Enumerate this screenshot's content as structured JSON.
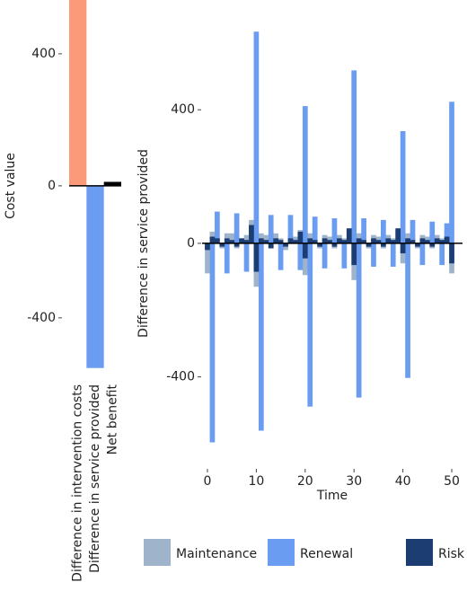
{
  "chart_data": [
    {
      "type": "bar",
      "y_label": "Cost value",
      "categories": [
        "Difference in intervention costs",
        "Difference in service provided",
        "Net benefit"
      ],
      "values": [
        563,
        -552,
        12
      ],
      "colors": [
        "#fb9a78",
        "#6a9cf2",
        "#000000"
      ],
      "ylim": [
        -580,
        563
      ],
      "yticks": [
        -400,
        0,
        400
      ]
    },
    {
      "type": "bar",
      "x_label": "Time",
      "y_label": "Difference in service provided",
      "x": [
        0,
        1,
        2,
        3,
        4,
        5,
        6,
        7,
        8,
        9,
        10,
        11,
        12,
        13,
        14,
        15,
        16,
        17,
        18,
        19,
        20,
        21,
        22,
        23,
        24,
        25,
        26,
        27,
        28,
        29,
        30,
        31,
        32,
        33,
        34,
        35,
        36,
        37,
        38,
        39,
        40,
        41,
        42,
        43,
        44,
        45,
        46,
        47,
        48,
        49,
        50
      ],
      "xlim": [
        -1.1,
        52.2
      ],
      "xticks": [
        0,
        10,
        20,
        30,
        40,
        50
      ],
      "ylim": [
        -670,
        675
      ],
      "yticks": [
        -400,
        0,
        400
      ],
      "series": [
        {
          "name": "Maintenance",
          "color": "#9fb4cb",
          "values": [
            -90,
            35,
            15,
            -15,
            30,
            30,
            -15,
            15,
            25,
            70,
            -130,
            30,
            25,
            -15,
            30,
            15,
            -20,
            25,
            20,
            40,
            -95,
            30,
            20,
            -15,
            25,
            20,
            -15,
            25,
            15,
            40,
            -110,
            30,
            20,
            -15,
            25,
            20,
            -15,
            25,
            15,
            40,
            -60,
            30,
            20,
            -15,
            25,
            20,
            -15,
            25,
            15,
            40,
            -90
          ]
        },
        {
          "name": "Renewal",
          "color": "#6a9cf2",
          "values": [
            0,
            -596,
            95,
            0,
            -90,
            0,
            90,
            0,
            -85,
            0,
            634,
            -561,
            0,
            85,
            0,
            -80,
            0,
            85,
            0,
            -80,
            411,
            -489,
            80,
            0,
            -75,
            0,
            75,
            0,
            -75,
            0,
            518,
            -462,
            75,
            0,
            -70,
            0,
            70,
            0,
            -70,
            0,
            336,
            -403,
            70,
            0,
            -65,
            0,
            65,
            0,
            -65,
            60,
            424
          ]
        },
        {
          "name": "Risk",
          "color": "#1b3d72",
          "values": [
            -20,
            20,
            15,
            -10,
            15,
            10,
            -10,
            15,
            10,
            55,
            -85,
            15,
            10,
            -15,
            15,
            10,
            -10,
            15,
            10,
            35,
            -45,
            15,
            10,
            -10,
            15,
            10,
            -10,
            15,
            10,
            45,
            -65,
            15,
            10,
            -10,
            15,
            10,
            -10,
            15,
            10,
            45,
            -30,
            15,
            10,
            -10,
            15,
            10,
            -10,
            15,
            10,
            20,
            -60
          ]
        }
      ]
    }
  ]
}
